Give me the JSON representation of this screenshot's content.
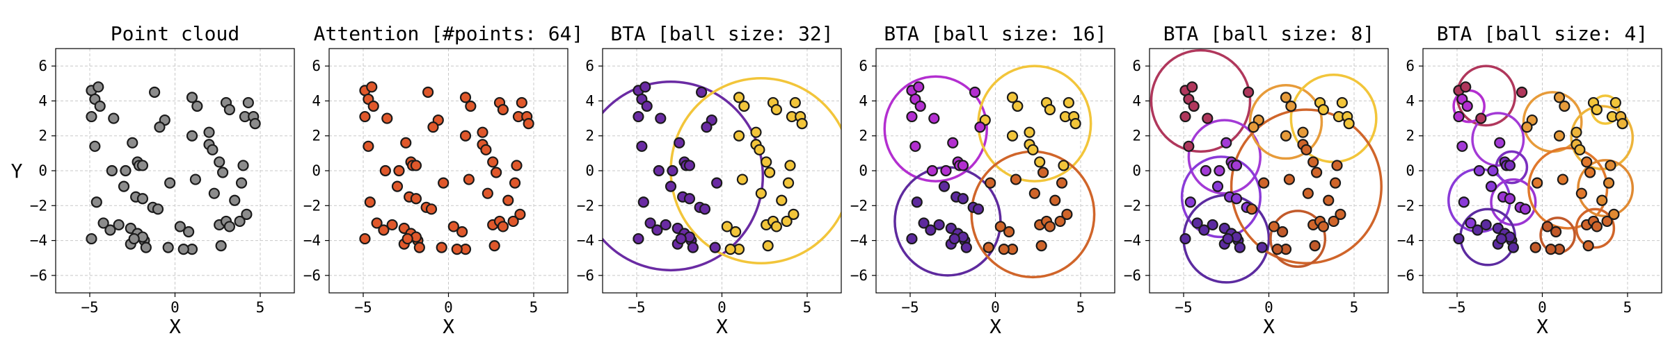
{
  "chart_data": [
    {
      "type": "scatter",
      "title": "Point cloud",
      "xlabel": "X",
      "ylabel": "Y",
      "xlim": [
        -7,
        7
      ],
      "ylim": [
        -7,
        7
      ],
      "xticks": [
        "−5",
        "0",
        "5"
      ],
      "yticks": [
        "6",
        "4",
        "2",
        "0",
        "−2",
        "−4",
        "−6"
      ],
      "grid": true,
      "point_color": "#8c8c8c",
      "points": [
        [
          -4.9,
          4.6
        ],
        [
          -4.5,
          4.8
        ],
        [
          -4.7,
          4.1
        ],
        [
          -4.4,
          3.7
        ],
        [
          -4.9,
          3.1
        ],
        [
          -3.6,
          3.0
        ],
        [
          -4.7,
          1.4
        ],
        [
          -2.5,
          1.6
        ],
        [
          -1.2,
          4.5
        ],
        [
          -0.6,
          2.9
        ],
        [
          -0.9,
          2.5
        ],
        [
          1.0,
          4.2
        ],
        [
          1.3,
          3.7
        ],
        [
          1.0,
          2.0
        ],
        [
          2.0,
          2.2
        ],
        [
          2.0,
          1.5
        ],
        [
          2.2,
          1.2
        ],
        [
          3.0,
          3.9
        ],
        [
          3.2,
          3.5
        ],
        [
          4.3,
          3.9
        ],
        [
          4.1,
          3.1
        ],
        [
          4.6,
          3.1
        ],
        [
          4.7,
          2.7
        ],
        [
          -3.7,
          0.0
        ],
        [
          -2.9,
          0.0
        ],
        [
          -2.2,
          0.5
        ],
        [
          -2.1,
          0.3
        ],
        [
          -1.9,
          0.3
        ],
        [
          -3.0,
          -0.9
        ],
        [
          -2.3,
          -1.5
        ],
        [
          -1.9,
          -1.6
        ],
        [
          -1.3,
          -2.1
        ],
        [
          -1.0,
          -2.2
        ],
        [
          -0.3,
          -0.7
        ],
        [
          1.2,
          -0.5
        ],
        [
          2.6,
          0.5
        ],
        [
          2.8,
          -0.1
        ],
        [
          4.0,
          0.3
        ],
        [
          3.9,
          -0.7
        ],
        [
          2.3,
          -1.3
        ],
        [
          3.5,
          -1.7
        ],
        [
          -4.6,
          -1.8
        ],
        [
          -4.2,
          -3.0
        ],
        [
          -3.3,
          -3.1
        ],
        [
          -3.8,
          -3.4
        ],
        [
          -4.9,
          -3.9
        ],
        [
          -2.6,
          -3.3
        ],
        [
          -2.2,
          -3.6
        ],
        [
          -1.8,
          -4.0
        ],
        [
          -2.6,
          -4.2
        ],
        [
          -1.7,
          -4.4
        ],
        [
          0.3,
          -3.2
        ],
        [
          0.8,
          -3.5
        ],
        [
          1.0,
          -4.5
        ],
        [
          2.6,
          -3.1
        ],
        [
          3.0,
          -2.9
        ],
        [
          3.2,
          -3.2
        ],
        [
          3.8,
          -2.9
        ],
        [
          4.2,
          -2.5
        ],
        [
          2.7,
          -4.3
        ],
        [
          0.5,
          -4.5
        ],
        [
          -0.4,
          -4.4
        ],
        [
          -1.9,
          -3.8
        ],
        [
          -2.4,
          -3.9
        ]
      ]
    },
    {
      "type": "scatter",
      "title": "Attention [#points: 64]",
      "xlabel": "X",
      "ylabel": "",
      "xlim": [
        -7,
        7
      ],
      "ylim": [
        -7,
        7
      ],
      "xticks": [
        "−5",
        "0",
        "5"
      ],
      "yticks": [
        "6",
        "4",
        "2",
        "0",
        "−2",
        "−4",
        "−6"
      ],
      "grid": true,
      "point_color": "#e0582b",
      "note": "same 64 points as 'Point cloud'"
    },
    {
      "type": "scatter",
      "title": "BTA [ball size: 32]",
      "xlabel": "X",
      "xlim": [
        -7,
        7
      ],
      "ylim": [
        -7,
        7
      ],
      "xticks": [
        "−5",
        "0",
        "5"
      ],
      "yticks": [
        "6",
        "4",
        "2",
        "0",
        "−2",
        "−4",
        "−6"
      ],
      "grid": true,
      "note": "same 64 points as 'Point cloud'",
      "balls": [
        {
          "cx": -3.0,
          "cy": -0.3,
          "r": 5.4,
          "color": "#6a2ba3"
        },
        {
          "cx": 2.3,
          "cy": 0.0,
          "r": 5.3,
          "color": "#f2c53a"
        }
      ]
    },
    {
      "type": "scatter",
      "title": "BTA [ball size: 16]",
      "xlabel": "X",
      "xlim": [
        -7,
        7
      ],
      "ylim": [
        -7,
        7
      ],
      "xticks": [
        "−5",
        "0",
        "5"
      ],
      "yticks": [
        "6",
        "4",
        "2",
        "0",
        "−2",
        "−4",
        "−6"
      ],
      "grid": true,
      "note": "same 64 points as 'Point cloud'",
      "balls": [
        {
          "cx": -3.5,
          "cy": 2.4,
          "r": 3.0,
          "color": "#b32fd0"
        },
        {
          "cx": 2.3,
          "cy": 2.7,
          "r": 3.3,
          "color": "#f2c53a"
        },
        {
          "cx": -2.8,
          "cy": -2.9,
          "r": 3.1,
          "color": "#5e2a9e"
        },
        {
          "cx": 2.2,
          "cy": -2.5,
          "r": 3.6,
          "color": "#d0652a"
        }
      ]
    },
    {
      "type": "scatter",
      "title": "BTA [ball size: 8]",
      "xlabel": "X",
      "xlim": [
        -7,
        7
      ],
      "ylim": [
        -7,
        7
      ],
      "xticks": [
        "−5",
        "0",
        "5"
      ],
      "yticks": [
        "6",
        "4",
        "2",
        "0",
        "−2",
        "−4",
        "−6"
      ],
      "grid": true,
      "note": "same 64 points as 'Point cloud'",
      "balls": [
        {
          "cx": -4.0,
          "cy": 4.0,
          "r": 2.9,
          "color": "#b0375c"
        },
        {
          "cx": -2.6,
          "cy": 0.8,
          "r": 2.1,
          "color": "#a33ad6"
        },
        {
          "cx": -2.8,
          "cy": -1.5,
          "r": 2.3,
          "color": "#8a3ad8"
        },
        {
          "cx": -2.5,
          "cy": -3.9,
          "r": 2.5,
          "color": "#5c2ba0"
        },
        {
          "cx": 1.0,
          "cy": 2.8,
          "r": 2.1,
          "color": "#e79b3a"
        },
        {
          "cx": 3.8,
          "cy": 3.0,
          "r": 2.5,
          "color": "#f2c53a"
        },
        {
          "cx": 2.2,
          "cy": -0.9,
          "r": 4.4,
          "color": "#d0652a"
        },
        {
          "cx": 1.7,
          "cy": -3.9,
          "r": 1.6,
          "color": "#c25a2a"
        }
      ]
    },
    {
      "type": "scatter",
      "title": "BTA [ball size: 4]",
      "xlabel": "X",
      "xlim": [
        -7,
        7
      ],
      "ylim": [
        -7,
        7
      ],
      "xticks": [
        "−5",
        "0",
        "5"
      ],
      "yticks": [
        "6",
        "4",
        "2",
        "0",
        "−2",
        "−4",
        "−6"
      ],
      "grid": true,
      "note": "same 64 points as 'Point cloud'",
      "balls": [
        {
          "cx": -3.3,
          "cy": 4.3,
          "r": 1.7,
          "color": "#b0375c"
        },
        {
          "cx": -4.3,
          "cy": 3.7,
          "r": 0.9,
          "color": "#b32fd0"
        },
        {
          "cx": -2.6,
          "cy": 1.8,
          "r": 1.5,
          "color": "#a33ad6"
        },
        {
          "cx": -1.8,
          "cy": 0.2,
          "r": 0.9,
          "color": "#7a2fbf"
        },
        {
          "cx": -3.7,
          "cy": -1.7,
          "r": 1.8,
          "color": "#8a3ad8"
        },
        {
          "cx": -1.7,
          "cy": -1.8,
          "r": 1.3,
          "color": "#9b35d3"
        },
        {
          "cx": -3.2,
          "cy": -3.8,
          "r": 1.6,
          "color": "#5c2ba0"
        },
        {
          "cx": 0.6,
          "cy": 2.8,
          "r": 1.7,
          "color": "#e79b3a"
        },
        {
          "cx": 3.7,
          "cy": 3.5,
          "r": 0.8,
          "color": "#f2c53a"
        },
        {
          "cx": 3.5,
          "cy": 1.9,
          "r": 1.8,
          "color": "#edb43a"
        },
        {
          "cx": 1.5,
          "cy": -1.0,
          "r": 2.3,
          "color": "#e0782c"
        },
        {
          "cx": 3.7,
          "cy": -1.0,
          "r": 1.6,
          "color": "#e08a32"
        },
        {
          "cx": 0.9,
          "cy": -3.7,
          "r": 1.0,
          "color": "#c25a2a"
        },
        {
          "cx": 3.1,
          "cy": -3.3,
          "r": 1.1,
          "color": "#d0652a"
        }
      ]
    }
  ]
}
